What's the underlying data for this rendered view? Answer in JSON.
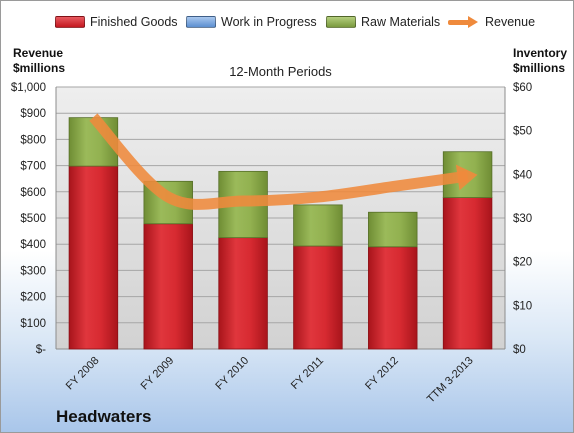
{
  "chart_data": {
    "type": "bar",
    "title": "12-Month Periods",
    "company": "Headwaters",
    "categories": [
      "FY 2008",
      "FY 2009",
      "FY 2010",
      "FY 2011",
      "FY 2012",
      "TTM 3-2013"
    ],
    "stacked": true,
    "series": [
      {
        "name": "Finished Goods",
        "type": "bar",
        "color": "#d9232d",
        "values": [
          698,
          478,
          425,
          393,
          390,
          578
        ]
      },
      {
        "name": "Work in Progress",
        "type": "bar",
        "color": "#6f9fd8",
        "values": [
          0,
          0,
          0,
          0,
          0,
          0
        ]
      },
      {
        "name": "Raw Materials",
        "type": "bar",
        "color": "#8fb04e",
        "values": [
          185,
          162,
          253,
          157,
          132,
          175
        ]
      },
      {
        "name": "Revenue",
        "type": "line",
        "axis": "left",
        "color": "#ef8a3c",
        "values": [
          885,
          580,
          565,
          580,
          620,
          660
        ]
      }
    ],
    "y_left": {
      "label": "Revenue $millions",
      "label_lines": [
        "Revenue",
        "$millions"
      ],
      "lim": [
        0,
        1000
      ],
      "ticks": [
        0,
        100,
        200,
        300,
        400,
        500,
        600,
        700,
        800,
        900,
        1000
      ],
      "tick_labels": [
        "$-",
        "$100",
        "$200",
        "$300",
        "$400",
        "$500",
        "$600",
        "$700",
        "$800",
        "$900",
        "$1,000"
      ]
    },
    "y_right": {
      "label": "Inventory $millions",
      "label_lines": [
        "Inventory",
        "$millions"
      ],
      "lim": [
        0,
        60
      ],
      "ticks": [
        0,
        10,
        20,
        30,
        40,
        50,
        60
      ],
      "tick_labels": [
        "$0",
        "$10",
        "$20",
        "$30",
        "$40",
        "$50",
        "$60"
      ]
    },
    "grid": true,
    "legend": "top"
  }
}
